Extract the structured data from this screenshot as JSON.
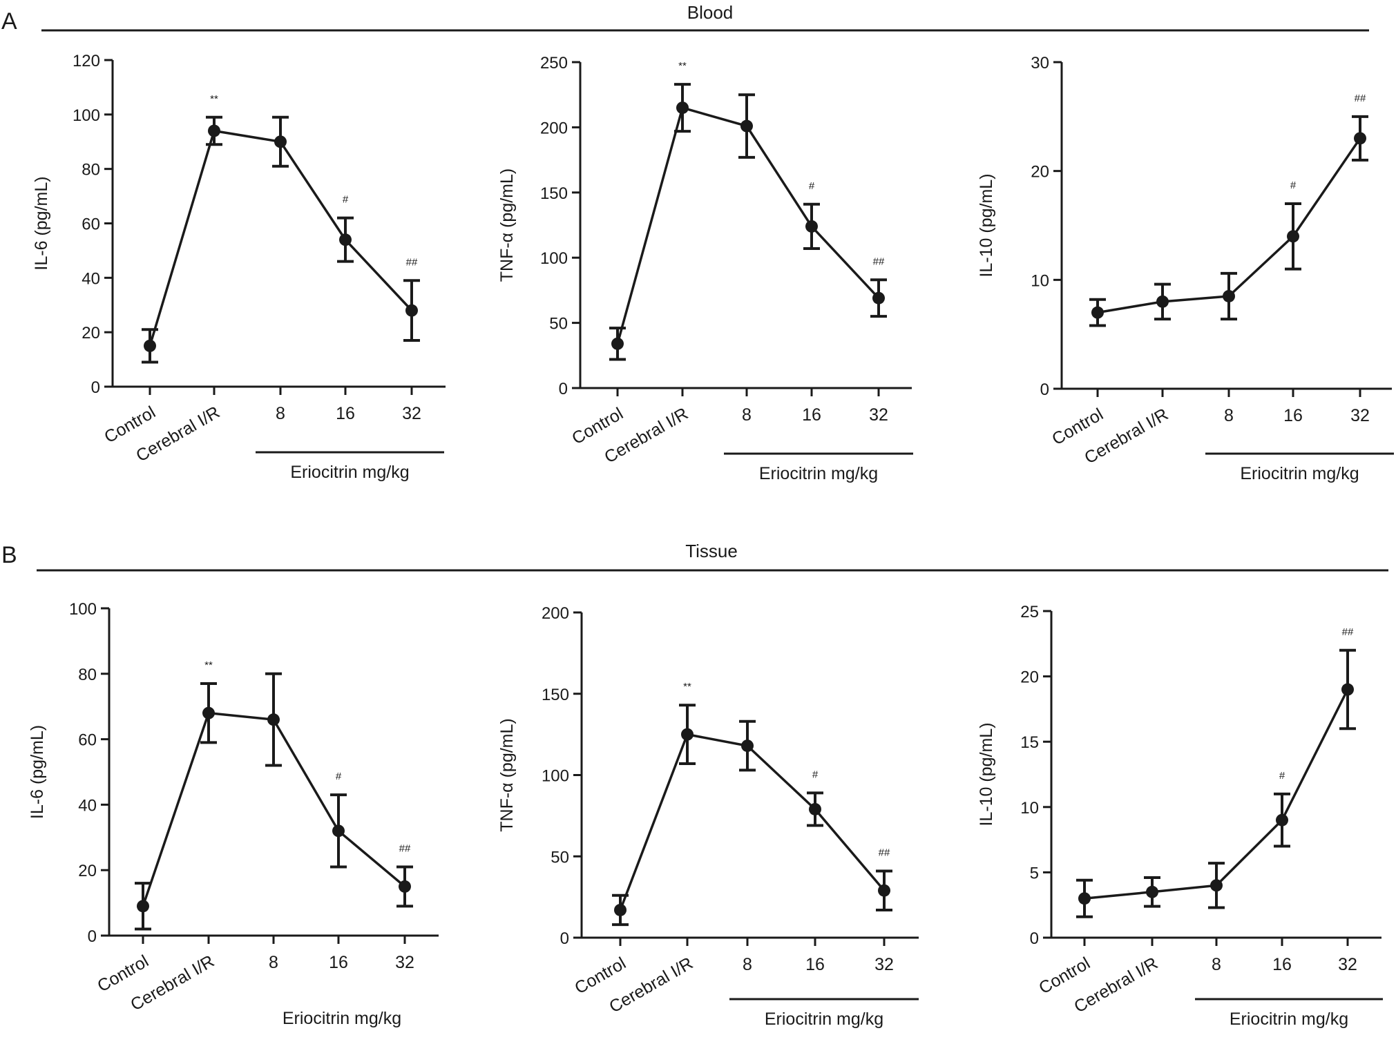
{
  "sections": [
    {
      "letter": "A",
      "title": "Blood"
    },
    {
      "letter": "B",
      "title": "Tissue"
    }
  ],
  "chart_data": [
    {
      "type": "line",
      "section": "Blood",
      "ylabel": "IL-6 (pg/mL)",
      "categories": [
        "Control",
        "Cerebral I/R",
        "8",
        "16",
        "32"
      ],
      "group_label": "Eriocitrin mg/kg",
      "ylim": [
        0,
        120
      ],
      "yticks": [
        0,
        20,
        40,
        60,
        80,
        100,
        120
      ],
      "values": [
        15,
        94,
        90,
        54,
        28
      ],
      "err_low": [
        9,
        89,
        81,
        46,
        17
      ],
      "err_high": [
        21,
        99,
        99,
        62,
        39
      ],
      "sig": [
        "",
        "**",
        "",
        "#",
        "##"
      ]
    },
    {
      "type": "line",
      "section": "Blood",
      "ylabel": "TNF-α (pg/mL)",
      "categories": [
        "Control",
        "Cerebral I/R",
        "8",
        "16",
        "32"
      ],
      "group_label": "Eriocitrin mg/kg",
      "ylim": [
        0,
        250
      ],
      "yticks": [
        0,
        50,
        100,
        150,
        200,
        250
      ],
      "values": [
        34,
        215,
        201,
        124,
        69
      ],
      "err_low": [
        22,
        197,
        177,
        107,
        55
      ],
      "err_high": [
        46,
        233,
        225,
        141,
        83
      ],
      "sig": [
        "",
        "**",
        "",
        "#",
        "##"
      ]
    },
    {
      "type": "line",
      "section": "Blood",
      "ylabel": "IL-10 (pg/mL)",
      "categories": [
        "Control",
        "Cerebral I/R",
        "8",
        "16",
        "32"
      ],
      "group_label": "Eriocitrin mg/kg",
      "ylim": [
        0,
        30
      ],
      "yticks": [
        0,
        10,
        20,
        30
      ],
      "values": [
        7,
        8,
        8.5,
        14,
        23
      ],
      "err_low": [
        5.8,
        6.4,
        6.4,
        11,
        21
      ],
      "err_high": [
        8.2,
        9.6,
        10.6,
        17,
        25
      ],
      "sig": [
        "",
        "",
        "",
        "#",
        "##"
      ]
    },
    {
      "type": "line",
      "section": "Tissue",
      "ylabel": "IL-6 (pg/mL)",
      "categories": [
        "Control",
        "Cerebral I/R",
        "8",
        "16",
        "32"
      ],
      "group_label": "Eriocitrin mg/kg",
      "ylim": [
        0,
        100
      ],
      "yticks": [
        0,
        20,
        40,
        60,
        80,
        100
      ],
      "values": [
        9,
        68,
        66,
        32,
        15
      ],
      "err_low": [
        2,
        59,
        52,
        21,
        9
      ],
      "err_high": [
        16,
        77,
        80,
        43,
        21
      ],
      "sig": [
        "",
        "**",
        "",
        "#",
        "##"
      ]
    },
    {
      "type": "line",
      "section": "Tissue",
      "ylabel": "TNF-α (pg/mL)",
      "categories": [
        "Control",
        "Cerebral I/R",
        "8",
        "16",
        "32"
      ],
      "group_label": "Eriocitrin mg/kg",
      "ylim": [
        0,
        200
      ],
      "yticks": [
        0,
        50,
        100,
        150,
        200
      ],
      "values": [
        17,
        125,
        118,
        79,
        29
      ],
      "err_low": [
        8,
        107,
        103,
        69,
        17
      ],
      "err_high": [
        26,
        143,
        133,
        89,
        41
      ],
      "sig": [
        "",
        "**",
        "",
        "#",
        "##"
      ]
    },
    {
      "type": "line",
      "section": "Tissue",
      "ylabel": "IL-10 (pg/mL)",
      "categories": [
        "Control",
        "Cerebral I/R",
        "8",
        "16",
        "32"
      ],
      "group_label": "Eriocitrin mg/kg",
      "ylim": [
        0,
        25
      ],
      "yticks": [
        0,
        5,
        10,
        15,
        20,
        25
      ],
      "values": [
        3,
        3.5,
        4,
        9,
        19
      ],
      "err_low": [
        1.6,
        2.4,
        2.3,
        7,
        16
      ],
      "err_high": [
        4.4,
        4.6,
        5.7,
        11,
        22
      ],
      "sig": [
        "",
        "",
        "",
        "#",
        "##"
      ]
    }
  ]
}
